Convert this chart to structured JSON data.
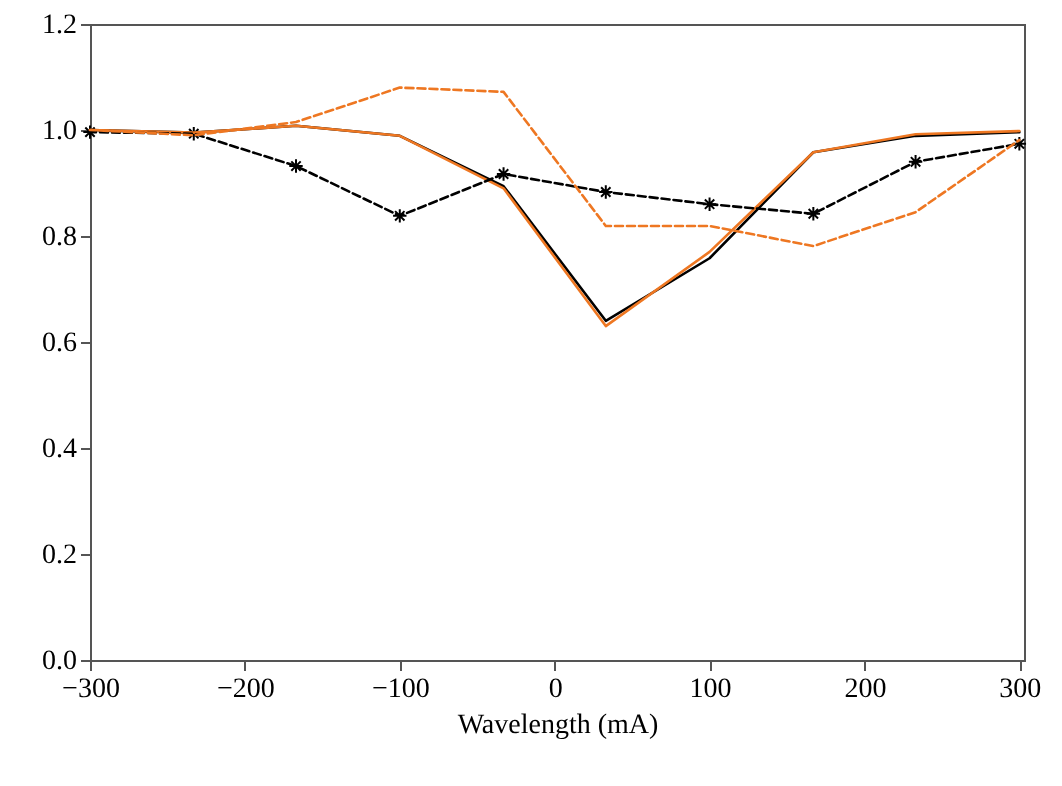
{
  "chart_data": {
    "type": "line",
    "xlabel": "Wavelength (mA)",
    "x": [
      -300,
      -233,
      -167,
      -100,
      -33,
      33,
      100,
      167,
      233,
      300
    ],
    "series": [
      {
        "color": "#000000",
        "line_style": "solid",
        "marker": "none",
        "values": [
          1.0,
          0.995,
          1.008,
          0.989,
          0.894,
          0.64,
          0.758,
          0.958,
          0.989,
          0.996
        ]
      },
      {
        "color": "#ee7722",
        "line_style": "solid",
        "marker": "none",
        "values": [
          1.0,
          0.995,
          1.008,
          0.989,
          0.89,
          0.63,
          0.77,
          0.958,
          0.992,
          0.998
        ]
      },
      {
        "color": "#000000",
        "line_style": "dashed",
        "marker": "cross",
        "values": [
          0.996,
          0.993,
          0.932,
          0.838,
          0.917,
          0.883,
          0.86,
          0.842,
          0.94,
          0.974
        ]
      },
      {
        "color": "#ee7722",
        "line_style": "dashed",
        "marker": "none",
        "values": [
          1.0,
          0.99,
          1.015,
          1.08,
          1.072,
          0.819,
          0.819,
          0.781,
          0.845,
          0.981
        ]
      }
    ],
    "xlim": [
      -300,
      303
    ],
    "xticks": [
      -300,
      -200,
      -100,
      0,
      100,
      200,
      300
    ],
    "ylim": [
      0,
      1.2
    ],
    "yticks": [
      {
        "value": 0,
        "label": "0.0"
      },
      {
        "value": 0.2,
        "label": "0.2"
      },
      {
        "value": 0.4,
        "label": "0.4"
      },
      {
        "value": 0.6,
        "label": "0.6"
      },
      {
        "value": 0.8,
        "label": "0.8"
      },
      {
        "value": 1,
        "label": "1.0"
      },
      {
        "value": 1.2,
        "label": "1.2"
      }
    ],
    "grid": false
  }
}
